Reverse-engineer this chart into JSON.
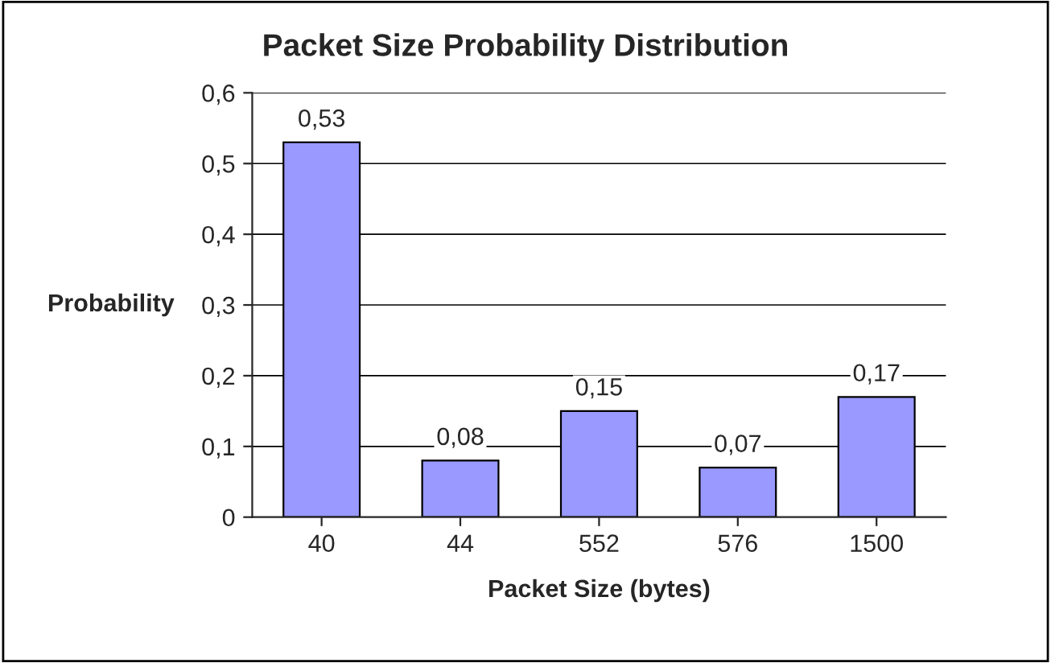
{
  "chart_data": {
    "type": "bar",
    "title": "Packet Size Probability Distribution",
    "xlabel": "Packet Size (bytes)",
    "ylabel": "Probability",
    "categories": [
      "40",
      "44",
      "552",
      "576",
      "1500"
    ],
    "values": [
      0.53,
      0.08,
      0.15,
      0.07,
      0.17
    ],
    "value_labels": [
      "0,53",
      "0,08",
      "0,15",
      "0,07",
      "0,17"
    ],
    "color": "#9999ff",
    "ylim": [
      0,
      0.6
    ],
    "yticks": [
      0,
      {
        "value": 0.1,
        "label": "0,1"
      },
      {
        "value": 0.2,
        "label": "0,2"
      },
      {
        "value": 0.3,
        "label": "0,3"
      },
      {
        "value": 0.4,
        "label": "0,4"
      },
      {
        "value": 0.5,
        "label": "0,5"
      },
      {
        "value": 0.6,
        "label": "0,6"
      }
    ],
    "grid": "y"
  }
}
